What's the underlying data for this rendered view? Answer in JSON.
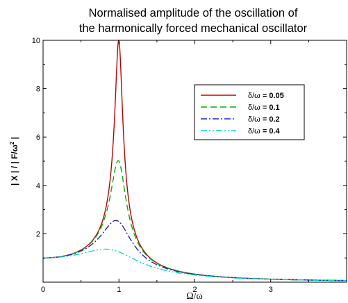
{
  "chart_data": {
    "type": "line",
    "title_line1": "Normalised amplitude of the oscillation of",
    "title_line2": "the harmonically forced mechanical oscillator",
    "xlabel": "Ω/ω",
    "ylabel": "| X |  /  | F/ω",
    "ylabel_sup": "2",
    "ylabel_tail": " |",
    "xlim": [
      0,
      4
    ],
    "ylim": [
      0,
      10
    ],
    "xticks": [
      "0",
      "1",
      "2",
      "3"
    ],
    "yticks": [
      "2",
      "4",
      "6",
      "8",
      "10"
    ],
    "grid": false,
    "legend_position": "top-right",
    "series": [
      {
        "name": "δ/ω = 0.05",
        "label_plain": "δ/ω",
        "label_value": " = 0.05",
        "damping": 0.05,
        "color": "#c00000",
        "dash": "",
        "peak": 10.0
      },
      {
        "name": "δ/ω = 0.1",
        "label_plain": "δ/ω",
        "label_value": " = 0.1",
        "damping": 0.1,
        "color": "#00b000",
        "dash": "9,5",
        "peak": 5.01
      },
      {
        "name": "δ/ω = 0.2",
        "label_plain": "δ/ω",
        "label_value": " = 0.2",
        "damping": 0.2,
        "color": "#2020d0",
        "dash": "9,3,2,3",
        "peak": 2.55
      },
      {
        "name": "δ/ω = 0.4",
        "label_plain": "δ/ω",
        "label_value": " = 0.4",
        "damping": 0.4,
        "color": "#00d8d8",
        "dash": "9,3,2,3,2,3",
        "peak": 1.36
      }
    ]
  }
}
